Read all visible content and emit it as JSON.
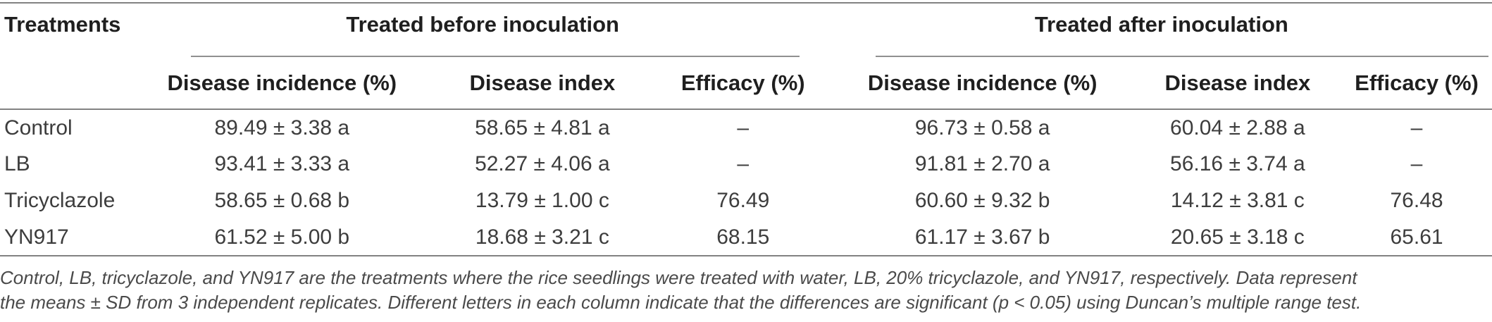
{
  "colors": {
    "rule_gray": "#828282",
    "header_text": "#1f1f1f",
    "body_text": "#3d3d3d",
    "footnote_text": "#4a4a4a",
    "background": "#ffffff"
  },
  "table": {
    "corner_header": "Treatments",
    "groups": [
      {
        "label": "Treated before inoculation"
      },
      {
        "label": "Treated after inoculation"
      }
    ],
    "column_headers": [
      "Disease incidence (%)",
      "Disease index",
      "Efficacy (%)",
      "Disease incidence (%)",
      "Disease index",
      "Efficacy (%)"
    ],
    "rows": [
      [
        "Control",
        "89.49 ± 3.38 a",
        "58.65 ± 4.81 a",
        "–",
        "96.73 ± 0.58 a",
        "60.04 ± 2.88 a",
        "–"
      ],
      [
        "LB",
        "93.41 ± 3.33 a",
        "52.27 ± 4.06 a",
        "–",
        "91.81 ± 2.70 a",
        "56.16 ± 3.74 a",
        "–"
      ],
      [
        "Tricyclazole",
        "58.65 ± 0.68 b",
        "13.79 ± 1.00 c",
        "76.49",
        "60.60 ± 9.32 b",
        "14.12 ± 3.81 c",
        "76.48"
      ],
      [
        "YN917",
        "61.52 ± 5.00 b",
        "18.68 ± 3.21 c",
        "68.15",
        "61.17 ± 3.67 b",
        "20.65 ± 3.18 c",
        "65.61"
      ]
    ],
    "footnote_line1": "Control, LB, tricyclazole, and YN917 are the treatments where the rice seedlings were treated with water, LB, 20% tricyclazole, and YN917, respectively. Data represent",
    "footnote_line2": "the means ± SD from 3 independent replicates. Different letters in each column indicate that the differences are significant (p < 0.05) using Duncan’s multiple range test."
  }
}
